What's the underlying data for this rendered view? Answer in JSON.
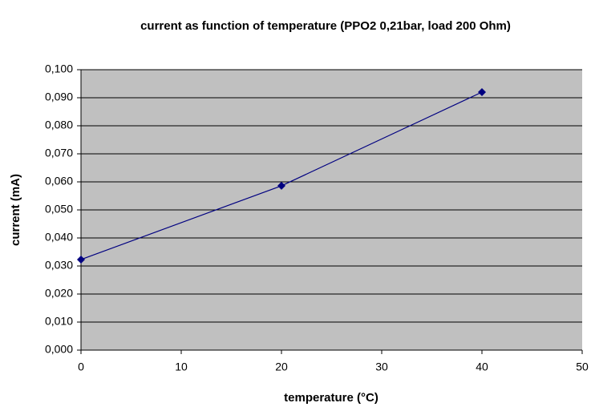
{
  "chart_data": {
    "type": "line",
    "title": "current as function of temperature (PPO2 0,21bar, load 200 Ohm)",
    "xlabel": "temperature (°C)",
    "ylabel": "current (mA)",
    "x": [
      0,
      20,
      40
    ],
    "values": [
      0.0323,
      0.0586,
      0.092
    ],
    "color": "#000080",
    "plot_background": "#c0c0c0",
    "xlim": [
      0,
      50
    ],
    "xticks": [
      0,
      10,
      20,
      30,
      40,
      50
    ],
    "ylim": [
      0,
      0.1
    ],
    "yticks": [
      {
        "value": 0,
        "label": "0,000"
      },
      {
        "value": 0.01,
        "label": "0,010"
      },
      {
        "value": 0.02,
        "label": "0,020"
      },
      {
        "value": 0.03,
        "label": "0,030"
      },
      {
        "value": 0.04,
        "label": "0,040"
      },
      {
        "value": 0.05,
        "label": "0,050"
      },
      {
        "value": 0.06,
        "label": "0,060"
      },
      {
        "value": 0.07,
        "label": "0,070"
      },
      {
        "value": 0.08,
        "label": "0,080"
      },
      {
        "value": 0.09,
        "label": "0,090"
      },
      {
        "value": 0.1,
        "label": "0,100"
      }
    ],
    "grid": true
  }
}
